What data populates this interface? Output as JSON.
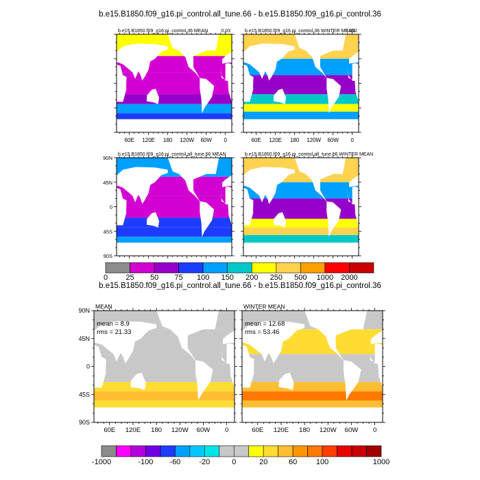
{
  "figure": {
    "title_top": "b.e15.B1850.f09_g16.pi_control.all_tune.66 - b.e15.B1850.f09_g16.pi_control.36",
    "title_bottom": "b.e15.B1850.f09_g16.pi_control.all_tune.66 - b.e15.B1850.f09_g16.pi_control.36"
  },
  "chart_data": [
    {
      "type": "heatmap",
      "title": "b.e15.B1850.f09_g16.pi_control.36 MEAN",
      "corner_label": "0.03",
      "x_ticks": [
        "60E",
        "120E",
        "180",
        "120W",
        "60W",
        "0"
      ],
      "y_ticks": [],
      "colorbar": "absolute",
      "stats": null
    },
    {
      "type": "heatmap",
      "title": "b.e15.B1850.f09_g16.pi_control.36 WINTER MEAN",
      "corner_label": "0.032",
      "x_ticks": [
        "60E",
        "120E",
        "180",
        "120W",
        "60W",
        "0"
      ],
      "y_ticks": [],
      "colorbar": "absolute",
      "stats": null
    },
    {
      "type": "heatmap",
      "title": "b.e15.B1850.f09_g16.pi_control.all_tune.66 MEAN",
      "x_ticks": [],
      "y_ticks": [
        "90N",
        "45N",
        "0",
        "45S",
        "90S"
      ],
      "colorbar": "absolute",
      "stats": null
    },
    {
      "type": "heatmap",
      "title": "b.e15.B1850.f09_g16.pi_control.all_tune.66 WINTER MEAN",
      "x_ticks": [],
      "y_ticks": [],
      "colorbar": "absolute",
      "stats": null
    },
    {
      "type": "heatmap",
      "title": "MEAN",
      "x_ticks": [
        "60E",
        "120E",
        "180",
        "120W",
        "60W",
        "0"
      ],
      "y_ticks": [
        "90N",
        "45N",
        "0",
        "45S",
        "90S"
      ],
      "colorbar": "difference",
      "stats": {
        "mean": "mean = 8.9",
        "rms": "rms = 21.33"
      }
    },
    {
      "type": "heatmap",
      "title": "WINTER MEAN",
      "x_ticks": [
        "60E",
        "120E",
        "180",
        "120W",
        "60W",
        "0"
      ],
      "y_ticks": [],
      "colorbar": "difference",
      "stats": {
        "mean": "mean = 12.68",
        "rms": "rms = 53.46"
      }
    }
  ],
  "colorbars": {
    "absolute": {
      "labels": [
        "0",
        "25",
        "50",
        "75",
        "100",
        "150",
        "200",
        "250",
        "500",
        "1000",
        "2000"
      ],
      "colors": [
        "#8c8c8c",
        "#d200d2",
        "#9600c8",
        "#1e3cff",
        "#00a0ff",
        "#00c8c8",
        "#ffff00",
        "#ffd250",
        "#ffa000",
        "#ff0000",
        "#c80000"
      ]
    },
    "difference": {
      "labels": [
        "-1000",
        "-100",
        "-60",
        "-20",
        "0",
        "20",
        "60",
        "100",
        "1000"
      ],
      "colors": [
        "#8c8c8c",
        "#ff00ff",
        "#b400dc",
        "#6e00e6",
        "#1e3cff",
        "#00a0ff",
        "#00c8ff",
        "#00e6e6",
        "#c8c8c8",
        "#c8c8c8",
        "#ffff00",
        "#ffdc32",
        "#ffbe32",
        "#ff9600",
        "#ff7800",
        "#ff3c00",
        "#e60000",
        "#c80000",
        "#a00000"
      ]
    }
  },
  "colors": {
    "land": "#ffffff",
    "frame": "#000000"
  }
}
